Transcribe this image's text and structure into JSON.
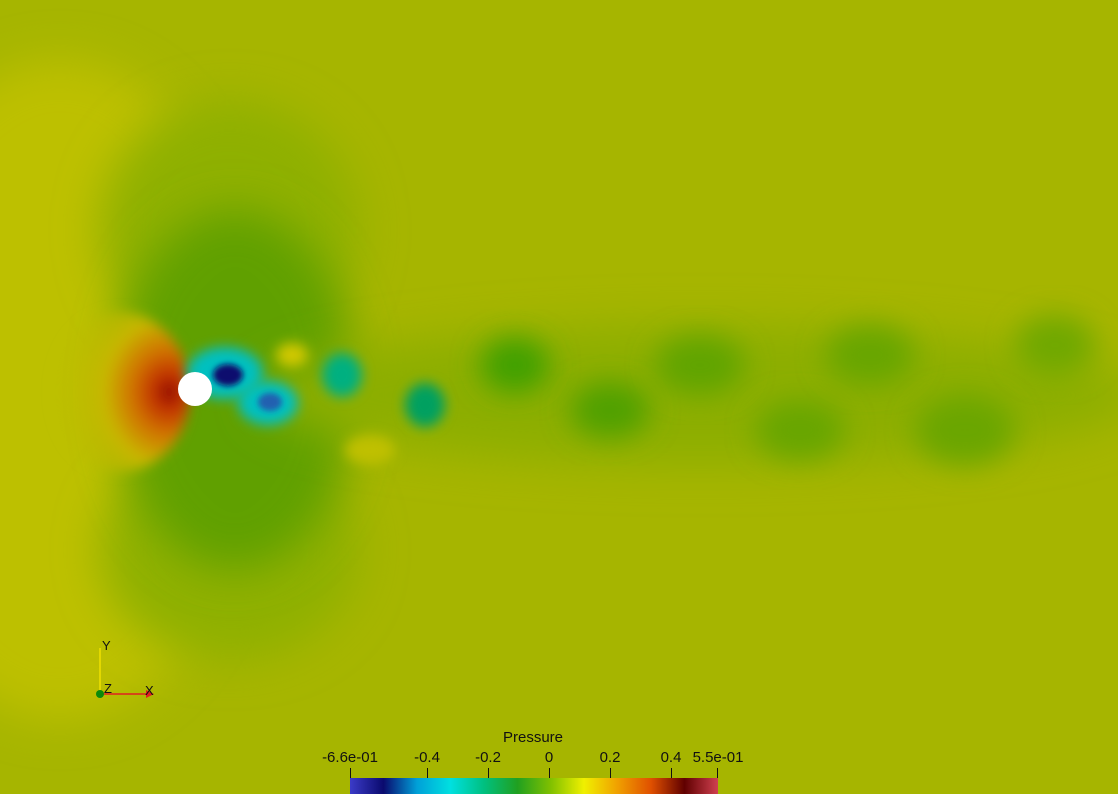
{
  "colors": {
    "background": "#a6b500",
    "cylinder": "#ffffff",
    "colormap": [
      "#3b3bc8",
      "#0a0a6e",
      "#00a0d8",
      "#00e0e0",
      "#00c080",
      "#20a020",
      "#80c000",
      "#f0f000",
      "#f0a000",
      "#e05000",
      "#600000",
      "#d04050"
    ],
    "axis_x": "#e02020",
    "axis_y": "#f0e000",
    "axis_z": "#00a000"
  },
  "colorbar": {
    "title": "Pressure",
    "min_label": "-6.6e-01",
    "max_label": "5.5e-01",
    "min": -0.66,
    "max": 0.55,
    "ticks": [
      "-0.4",
      "-0.2",
      "0",
      "0.2",
      "0.4"
    ],
    "tick_values": [
      -0.4,
      -0.2,
      0,
      0.2,
      0.4
    ]
  },
  "orientation_axes": {
    "x_label": "X",
    "y_label": "Y",
    "z_label": "Z"
  }
}
